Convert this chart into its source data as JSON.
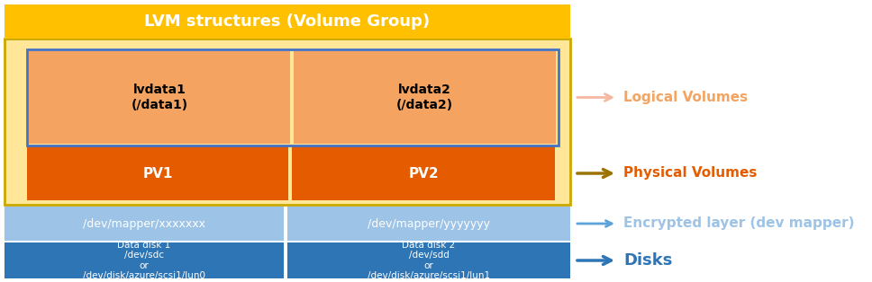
{
  "title": "LVM structures (Volume Group)",
  "title_bg": "#FFC000",
  "title_color": "#FFFFFF",
  "title_fontsize": 13,
  "vg_bg": "#FFE699",
  "vg_border": "#C9A800",
  "lv_bg": "#F4A460",
  "lv_border": "#4472C4",
  "lv1_text": "lvdata1\n(/data1)",
  "lv2_text": "lvdata2\n(/data2)",
  "lv_text_color": "#000000",
  "lv_fontsize": 10,
  "pv_bg": "#E55C00",
  "pv_border": "#4472C4",
  "pv1_text": "PV1",
  "pv2_text": "PV2",
  "pv_text_color": "#FFFFFF",
  "pv_fontsize": 11,
  "dm_bg": "#9DC3E6",
  "dm1_text": "/dev/mapper/xxxxxxx",
  "dm2_text": "/dev/mapper/yyyyyyy",
  "dm_text_color": "#FFFFFF",
  "dm_fontsize": 9,
  "disk_bg": "#2E75B6",
  "disk1_text": "Data disk 1\n/dev/sdc\nor\n/dev/disk/azure/scsi1/lun0",
  "disk2_text": "Data disk 2\n/dev/sdd\nor\n/dev/disk/azure/scsi1/lun1",
  "disk_text_color": "#FFFFFF",
  "disk_fontsize": 7.5,
  "arrow_lv_color": "#F4B8A0",
  "arrow_pv_color": "#9A7300",
  "arrow_dm_color": "#5BA3D9",
  "arrow_disk_color": "#2E75B6",
  "label_lv_text": "Logical Volumes",
  "label_pv_text": "Physical Volumes",
  "label_dm_text": "Encrypted layer (dev mapper)",
  "label_disk_text": "Disks",
  "label_lv_color": "#F4A460",
  "label_pv_color": "#E55C00",
  "label_dm_color": "#9DC3E6",
  "label_disk_color": "#2E75B6",
  "label_fontsize": 11
}
